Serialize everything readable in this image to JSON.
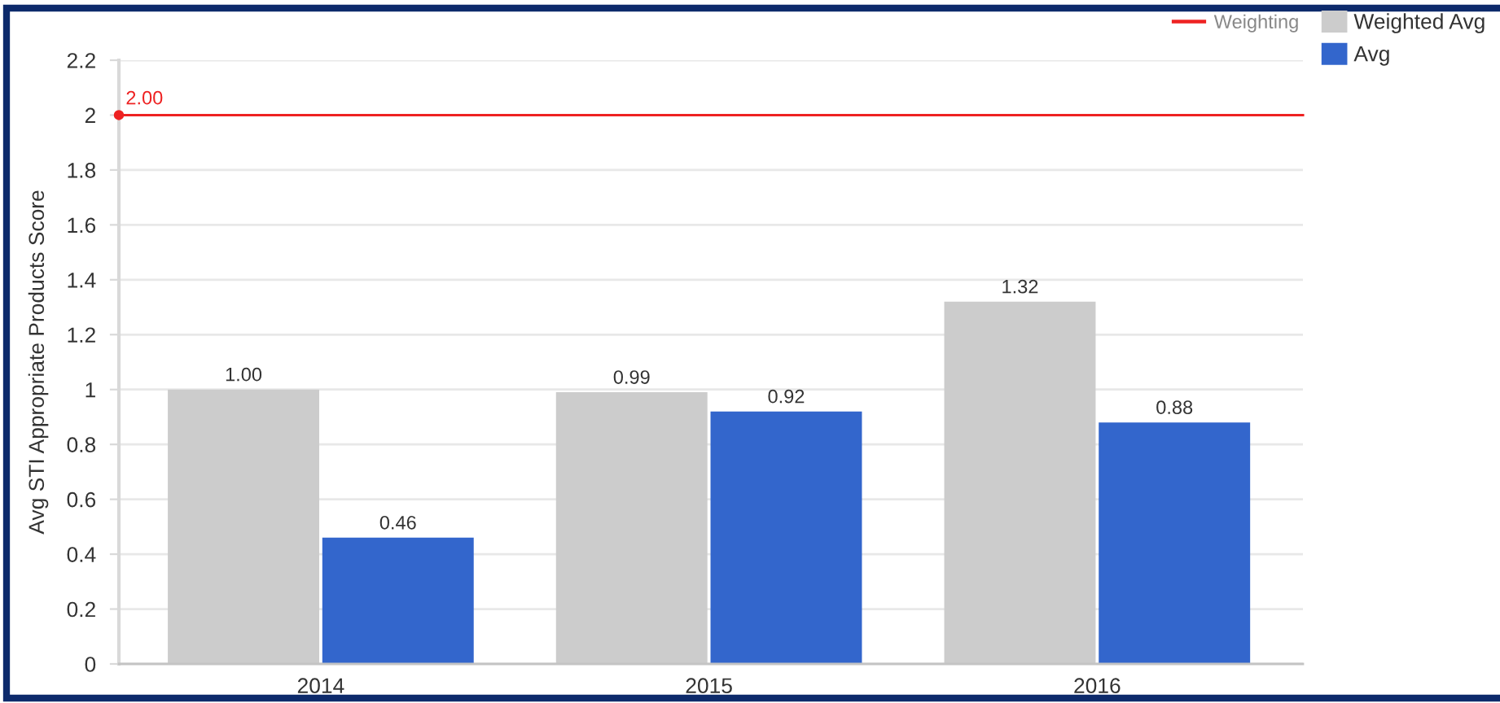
{
  "chart_data": {
    "type": "bar",
    "ylabel": "Avg STI Appropriate Products Score",
    "categories": [
      "2014",
      "2015",
      "2016"
    ],
    "series": [
      {
        "name": "Weighted Avg",
        "color": "#cccccc",
        "values": [
          1.0,
          0.99,
          1.32
        ],
        "value_labels": [
          "1.00",
          "0.99",
          "1.32"
        ]
      },
      {
        "name": "Avg",
        "color": "#3366cc",
        "values": [
          0.46,
          0.92,
          0.88
        ],
        "value_labels": [
          "0.46",
          "0.92",
          "0.88"
        ]
      }
    ],
    "ylim": [
      0,
      2.2
    ],
    "yticks": [
      0,
      0.2,
      0.4,
      0.6,
      0.8,
      1,
      1.2,
      1.4,
      1.6,
      1.8,
      2,
      2.2
    ],
    "ref_lines": [
      {
        "axis": "y",
        "value": 2,
        "label": "Weighting",
        "color": "#ee2222"
      }
    ],
    "annotations": [
      {
        "text": "2.00",
        "y": 2
      }
    ],
    "grid": "y",
    "legend": "top right"
  }
}
